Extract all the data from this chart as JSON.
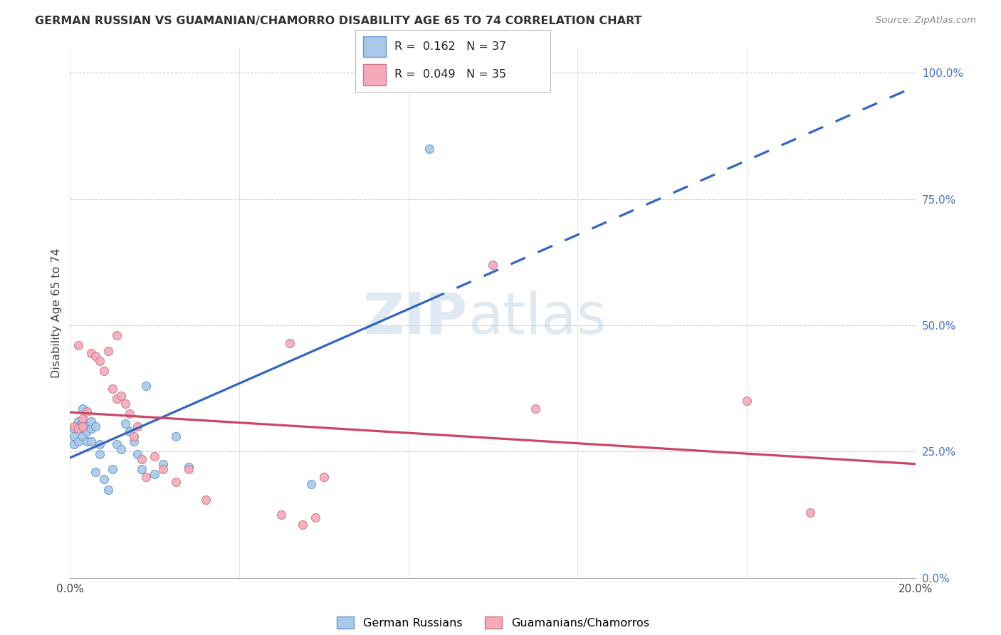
{
  "title": "GERMAN RUSSIAN VS GUAMANIAN/CHAMORRO DISABILITY AGE 65 TO 74 CORRELATION CHART",
  "source": "Source: ZipAtlas.com",
  "ylabel": "Disability Age 65 to 74",
  "xlim": [
    0.0,
    0.2
  ],
  "ylim": [
    0.0,
    1.05
  ],
  "ytick_vals": [
    0.0,
    0.25,
    0.5,
    0.75,
    1.0
  ],
  "ytick_labels": [
    "0.0%",
    "25.0%",
    "50.0%",
    "75.0%",
    "100.0%"
  ],
  "xtick_vals": [
    0.0,
    0.04,
    0.08,
    0.12,
    0.16,
    0.2
  ],
  "xtick_labels": [
    "0.0%",
    "",
    "",
    "",
    "",
    "20.0%"
  ],
  "blue_R": "0.162",
  "blue_N": "37",
  "pink_R": "0.049",
  "pink_N": "35",
  "blue_dot_color": "#aac8e8",
  "blue_edge_color": "#6699cc",
  "pink_dot_color": "#f4aabb",
  "pink_edge_color": "#cc7788",
  "blue_line_color": "#3366bb",
  "pink_line_color": "#cc4466",
  "legend_label_blue": "German Russians",
  "legend_label_pink": "Guamanians/Chamorros",
  "blue_x": [
    0.001,
    0.001,
    0.001,
    0.002,
    0.002,
    0.002,
    0.003,
    0.003,
    0.003,
    0.003,
    0.004,
    0.004,
    0.004,
    0.005,
    0.005,
    0.005,
    0.006,
    0.006,
    0.007,
    0.007,
    0.008,
    0.009,
    0.01,
    0.011,
    0.012,
    0.013,
    0.014,
    0.015,
    0.016,
    0.017,
    0.018,
    0.02,
    0.022,
    0.025,
    0.028,
    0.057,
    0.085
  ],
  "blue_y": [
    0.295,
    0.28,
    0.265,
    0.31,
    0.3,
    0.27,
    0.335,
    0.295,
    0.31,
    0.28,
    0.3,
    0.29,
    0.27,
    0.295,
    0.31,
    0.27,
    0.3,
    0.21,
    0.265,
    0.245,
    0.195,
    0.175,
    0.215,
    0.265,
    0.255,
    0.305,
    0.29,
    0.27,
    0.245,
    0.215,
    0.38,
    0.205,
    0.225,
    0.28,
    0.22,
    0.185,
    0.85
  ],
  "pink_x": [
    0.001,
    0.002,
    0.002,
    0.003,
    0.003,
    0.004,
    0.005,
    0.006,
    0.007,
    0.008,
    0.009,
    0.01,
    0.011,
    0.011,
    0.012,
    0.013,
    0.014,
    0.015,
    0.016,
    0.017,
    0.018,
    0.02,
    0.022,
    0.025,
    0.028,
    0.032,
    0.05,
    0.052,
    0.055,
    0.058,
    0.06,
    0.1,
    0.11,
    0.16,
    0.175
  ],
  "pink_y": [
    0.3,
    0.295,
    0.46,
    0.315,
    0.3,
    0.33,
    0.445,
    0.44,
    0.43,
    0.41,
    0.45,
    0.375,
    0.355,
    0.48,
    0.36,
    0.345,
    0.325,
    0.28,
    0.3,
    0.235,
    0.2,
    0.24,
    0.215,
    0.19,
    0.215,
    0.155,
    0.125,
    0.465,
    0.105,
    0.12,
    0.2,
    0.62,
    0.335,
    0.35,
    0.13
  ]
}
